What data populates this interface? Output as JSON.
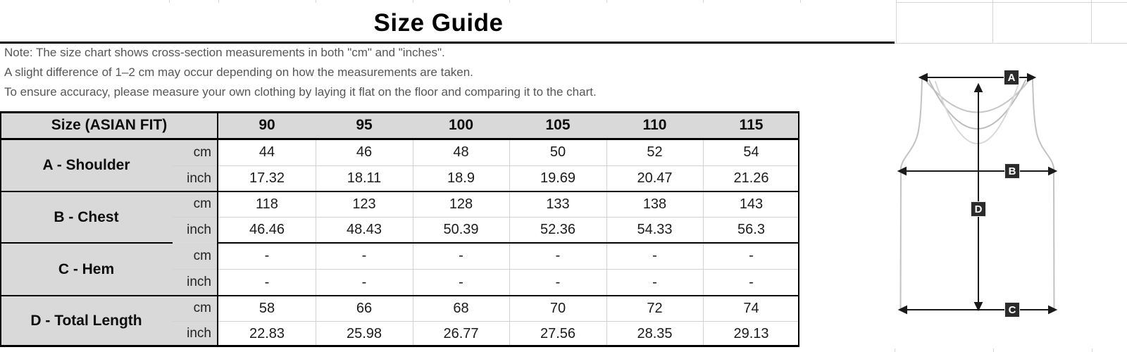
{
  "title": "Size Guide",
  "notes": [
    "Note: The size chart shows cross-section measurements in both \"cm\" and \"inches\".",
    "A slight difference of 1–2 cm may occur depending on how the measurements are taken.",
    "To ensure accuracy, please measure your own clothing by laying it flat on the floor and comparing it to the chart."
  ],
  "table": {
    "corner_header": "Size (ASIAN FIT)",
    "sizes": [
      "90",
      "95",
      "100",
      "105",
      "110",
      "115"
    ],
    "units": [
      "cm",
      "inch"
    ],
    "rows": [
      {
        "label": "A - Shoulder",
        "cm": [
          "44",
          "46",
          "48",
          "50",
          "52",
          "54"
        ],
        "inch": [
          "17.32",
          "18.11",
          "18.9",
          "19.69",
          "20.47",
          "21.26"
        ]
      },
      {
        "label": "B - Chest",
        "cm": [
          "118",
          "123",
          "128",
          "133",
          "138",
          "143"
        ],
        "inch": [
          "46.46",
          "48.43",
          "50.39",
          "52.36",
          "54.33",
          "56.3"
        ]
      },
      {
        "label": "C - Hem",
        "cm": [
          "-",
          "-",
          "-",
          "-",
          "-",
          "-"
        ],
        "inch": [
          "-",
          "-",
          "-",
          "-",
          "-",
          "-"
        ]
      },
      {
        "label": "D - Total Length",
        "cm": [
          "58",
          "66",
          "68",
          "70",
          "72",
          "74"
        ],
        "inch": [
          "22.83",
          "25.98",
          "26.77",
          "27.56",
          "28.35",
          "29.13"
        ]
      }
    ]
  },
  "diagram": {
    "labels": {
      "a": "A",
      "b": "B",
      "c": "C",
      "d": "D"
    }
  },
  "colors": {
    "header_fill": "#d9d9d9",
    "border_black": "#000000",
    "border_light": "#d2d2d2",
    "note_text": "#565656",
    "shirt_outline": "#c2c2c2",
    "arrow": "#1a1a1a",
    "label_box_fill": "#2b2b2b"
  }
}
